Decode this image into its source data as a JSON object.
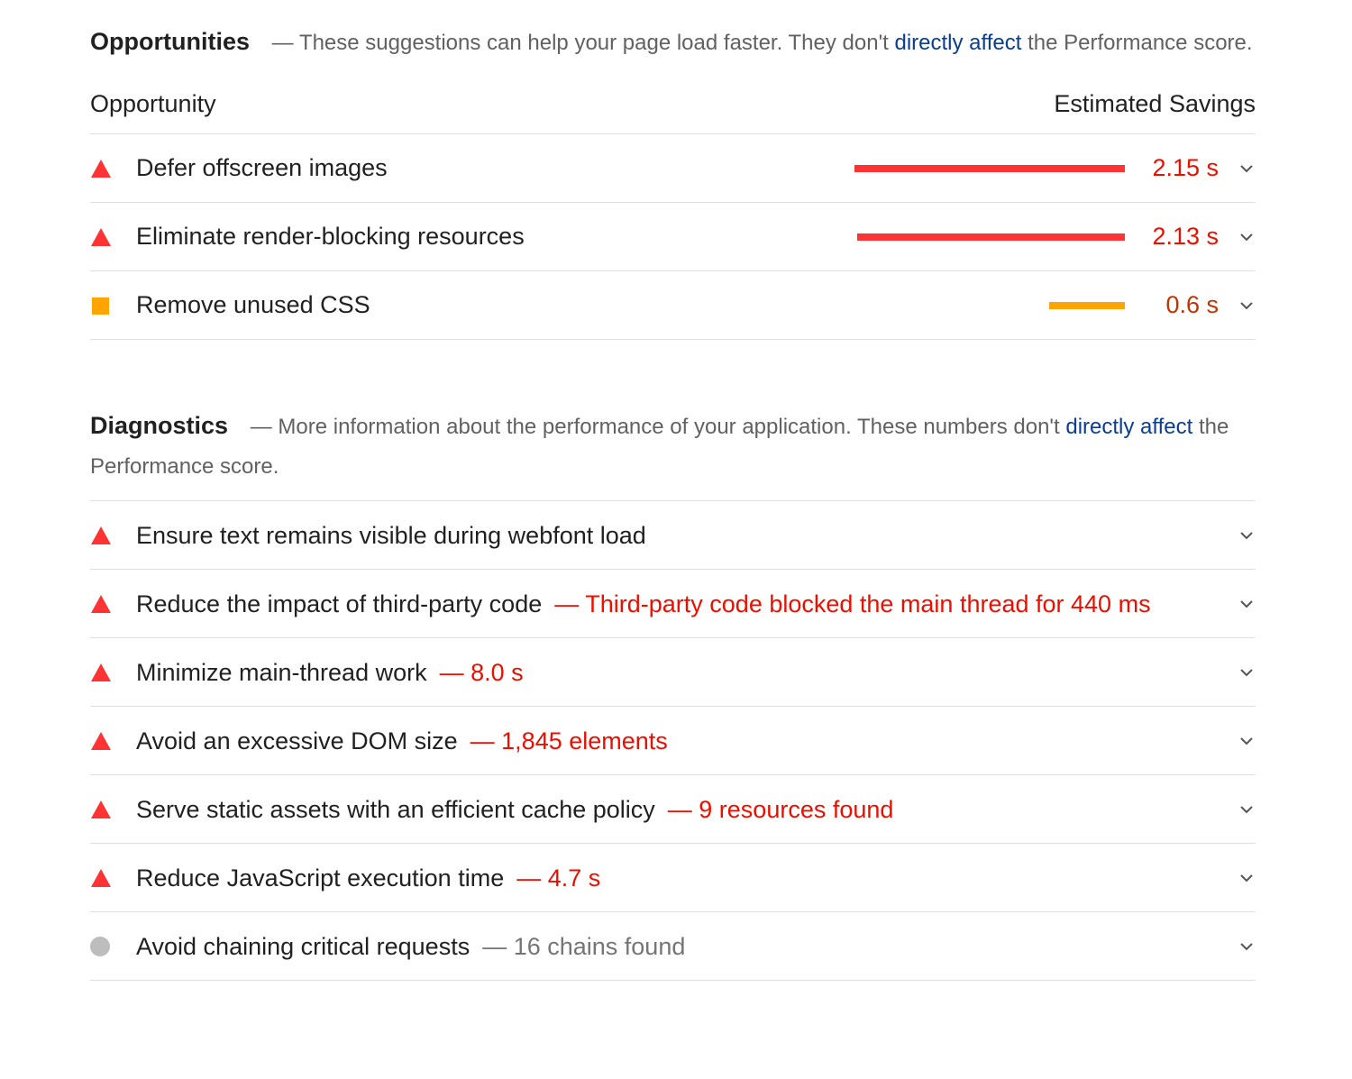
{
  "opportunities": {
    "title": "Opportunities",
    "description": {
      "before": "— These suggestions can help your page load faster. They don't",
      "link": "directly affect",
      "after": "the Performance score."
    },
    "column_headers": [
      "Opportunity",
      "Estimated Savings"
    ],
    "items": [
      {
        "severity": "fail",
        "title": "Defer offscreen images",
        "savings": {
          "value": 2.15,
          "label": "2.15 s"
        }
      },
      {
        "severity": "fail",
        "title": "Eliminate render-blocking resources",
        "savings": {
          "value": 2.13,
          "label": "2.13 s"
        }
      },
      {
        "severity": "average",
        "title": "Remove unused CSS",
        "savings": {
          "value": 0.6,
          "label": "0.6 s"
        }
      }
    ]
  },
  "diagnostics": {
    "title": "Diagnostics",
    "description": {
      "before": "— More information about the performance of your application. These numbers don't",
      "link": "directly affect",
      "after": "the Performance score."
    },
    "items": [
      {
        "severity": "fail",
        "title": "Ensure text remains visible during webfont load"
      },
      {
        "severity": "fail",
        "title": "Reduce the impact of third-party code",
        "detail": "— Third-party code blocked the main thread for 440 ms"
      },
      {
        "severity": "fail",
        "title": "Minimize main-thread work",
        "detail": "— 8.0 s"
      },
      {
        "severity": "fail",
        "title": "Avoid an excessive DOM size",
        "detail": "— 1,845 elements"
      },
      {
        "severity": "fail",
        "title": "Serve static assets with an efficient cache policy",
        "detail": "— 9 resources found"
      },
      {
        "severity": "fail",
        "title": "Reduce JavaScript execution time",
        "detail": "— 4.7 s"
      },
      {
        "severity": "info",
        "title": "Avoid chaining critical requests",
        "detail": "— 16 chains found"
      }
    ]
  }
}
